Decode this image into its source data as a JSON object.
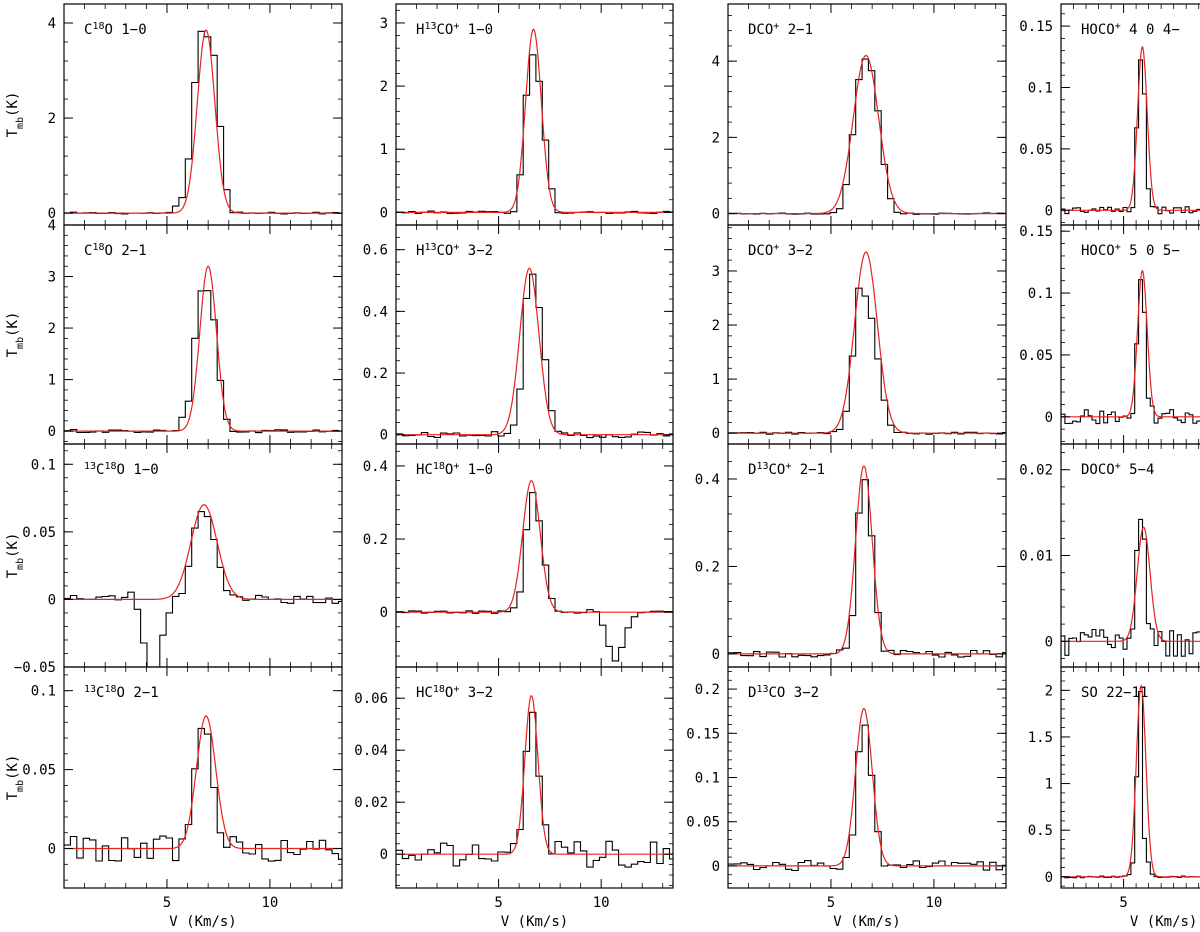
{
  "ytitle_main": "T",
  "ytitle_sub": "mb",
  "ytitle_unit": "(K)",
  "xtitle": "V (Km/s)",
  "colors": {
    "observed": "#000000",
    "fit": "#e8231f",
    "frame": "#000000"
  },
  "chart_data": [
    {
      "type": "line",
      "column": 1,
      "xlim": [
        0.0,
        13.5
      ],
      "xticks": [
        5,
        10
      ],
      "xtick_labels": [
        "5",
        "10"
      ],
      "xlabel": "V (Km/s)",
      "ylabel": "Tmb(K)",
      "panels": [
        {
          "label": {
            "pre": "C",
            "sup1": "18",
            "mid": "O 1−0",
            "sup2": "",
            "post": ""
          },
          "ylim": [
            -0.25,
            4.4
          ],
          "yticks": [
            0,
            2,
            4
          ],
          "ytick_labels": [
            "0",
            "2",
            "4"
          ],
          "noise": 0.02,
          "dip": null,
          "fit": {
            "amp": 3.85,
            "center": 6.9,
            "width": 1.0
          },
          "observed": {
            "x": [
              5.3,
              5.7,
              6.0,
              6.3,
              6.6,
              7.0,
              7.3,
              7.6,
              7.9,
              8.2
            ],
            "y": [
              0.1,
              0.25,
              0.9,
              2.5,
              3.85,
              3.7,
              3.3,
              1.8,
              0.5,
              0.1
            ]
          }
        },
        {
          "label": {
            "pre": "C",
            "sup1": "18",
            "mid": "O 2−1",
            "sup2": "",
            "post": ""
          },
          "ylim": [
            -0.25,
            4.0
          ],
          "yticks": [
            0,
            1,
            2,
            3,
            4
          ],
          "ytick_labels": [
            "0",
            "1",
            "2",
            "3",
            "4"
          ],
          "noise": 0.03,
          "dip": null,
          "fit": {
            "amp": 3.2,
            "center": 7.0,
            "width": 0.95
          },
          "observed": {
            "x": [
              5.6,
              6.0,
              6.3,
              6.6,
              6.9,
              7.2,
              7.5,
              7.8,
              8.1
            ],
            "y": [
              0.2,
              0.4,
              1.6,
              2.7,
              2.8,
              2.5,
              1.3,
              0.3,
              0.1
            ]
          }
        },
        {
          "label": {
            "pre": "",
            "sup1": "13",
            "mid": "C",
            "sup2": "18",
            "post": "O 1−0"
          },
          "ylim": [
            -0.05,
            0.115
          ],
          "yticks": [
            -0.05,
            0,
            0.05,
            0.1
          ],
          "ytick_labels": [
            "−0.05",
            "0",
            "0.05",
            "0.1"
          ],
          "noise": 0.003,
          "dip": {
            "center": 4.3,
            "depth": 0.06,
            "width": 0.5,
            "bump": 0.008
          },
          "fit": {
            "amp": 0.07,
            "center": 6.8,
            "width": 1.5
          },
          "observed": {
            "x": [
              6.0,
              6.3,
              6.6,
              6.9,
              7.2,
              7.5,
              7.8
            ],
            "y": [
              0.02,
              0.05,
              0.065,
              0.065,
              0.05,
              0.03,
              0.01
            ]
          }
        },
        {
          "label": {
            "pre": "",
            "sup1": "13",
            "mid": "C",
            "sup2": "18",
            "post": "O 2−1"
          },
          "ylim": [
            -0.025,
            0.115
          ],
          "yticks": [
            0,
            0.05,
            0.1
          ],
          "ytick_labels": [
            "0",
            "0.05",
            "0.1"
          ],
          "noise": 0.008,
          "dip": null,
          "fit": {
            "amp": 0.084,
            "center": 6.9,
            "width": 1.1
          },
          "observed": {
            "x": [
              6.0,
              6.3,
              6.6,
              6.9,
              7.2,
              7.5
            ],
            "y": [
              0.01,
              0.045,
              0.075,
              0.08,
              0.05,
              0.01
            ]
          }
        }
      ]
    },
    {
      "type": "line",
      "column": 2,
      "xlim": [
        0.0,
        13.5
      ],
      "xticks": [
        5,
        10
      ],
      "xtick_labels": [
        "5",
        "10"
      ],
      "xlabel": "V (Km/s)",
      "panels": [
        {
          "label": {
            "pre": "H",
            "sup1": "13",
            "mid": "CO",
            "sup2": "+",
            "post": " 1−0"
          },
          "ylim": [
            -0.2,
            3.3
          ],
          "yticks": [
            0,
            1,
            2,
            3
          ],
          "ytick_labels": [
            "0",
            "1",
            "2",
            "3"
          ],
          "noise": 0.02,
          "dip": null,
          "fit": {
            "amp": 2.9,
            "center": 6.7,
            "width": 0.9
          },
          "observed": {
            "x": [
              6.0,
              6.3,
              6.6,
              6.9,
              7.2,
              7.5,
              7.8
            ],
            "y": [
              0.4,
              1.7,
              2.55,
              2.3,
              1.4,
              0.5,
              0.1
            ]
          }
        },
        {
          "label": {
            "pre": "H",
            "sup1": "13",
            "mid": "CO",
            "sup2": "+",
            "post": " 3−2"
          },
          "ylim": [
            -0.03,
            0.68
          ],
          "yticks": [
            0,
            0.2,
            0.4,
            0.6
          ],
          "ytick_labels": [
            "0",
            "0.2",
            "0.4",
            "0.6"
          ],
          "noise": 0.01,
          "dip": null,
          "fit": {
            "amp": 0.54,
            "center": 6.5,
            "width": 1.1
          },
          "observed": {
            "x": [
              6.0,
              6.3,
              6.6,
              6.9,
              7.2,
              7.5,
              7.8
            ],
            "y": [
              0.1,
              0.42,
              0.54,
              0.45,
              0.3,
              0.1,
              0.03
            ]
          }
        },
        {
          "label": {
            "pre": "HC",
            "sup1": "18",
            "mid": "O",
            "sup2": "+",
            "post": " 1−0"
          },
          "ylim": [
            -0.15,
            0.46
          ],
          "yticks": [
            0,
            0.2,
            0.4
          ],
          "ytick_labels": [
            "0",
            "0.2",
            "0.4"
          ],
          "noise": 0.004,
          "dip": {
            "center": 10.7,
            "depth": 0.13,
            "width": 0.5,
            "bump": 0.015
          },
          "fit": {
            "amp": 0.36,
            "center": 6.6,
            "width": 1.0
          },
          "observed": {
            "x": [
              6.0,
              6.3,
              6.6,
              6.9,
              7.2,
              7.5,
              7.8
            ],
            "y": [
              0.03,
              0.2,
              0.34,
              0.28,
              0.16,
              0.05,
              0.01
            ]
          }
        },
        {
          "label": {
            "pre": "HC",
            "sup1": "18",
            "mid": "O",
            "sup2": "+",
            "post": " 3−2"
          },
          "ylim": [
            -0.013,
            0.072
          ],
          "yticks": [
            0,
            0.02,
            0.04,
            0.06
          ],
          "ytick_labels": [
            "0",
            "0.02",
            "0.04",
            "0.06"
          ],
          "noise": 0.005,
          "dip": null,
          "fit": {
            "amp": 0.061,
            "center": 6.6,
            "width": 0.75
          },
          "observed": {
            "x": [
              6.0,
              6.3,
              6.6,
              6.9,
              7.2,
              7.5
            ],
            "y": [
              0.005,
              0.035,
              0.06,
              0.035,
              0.015,
              0.002
            ]
          }
        }
      ]
    },
    {
      "type": "line",
      "column": 3,
      "xlim": [
        0.0,
        13.5
      ],
      "xticks": [
        5,
        10
      ],
      "xtick_labels": [
        "5",
        "10"
      ],
      "xlabel": "V (Km/s)",
      "panels": [
        {
          "label": {
            "pre": "DCO",
            "sup1": "+",
            "mid": " 2−1",
            "sup2": "",
            "post": ""
          },
          "ylim": [
            -0.3,
            5.5
          ],
          "yticks": [
            0,
            2,
            4
          ],
          "ytick_labels": [
            "0",
            "2",
            "4"
          ],
          "noise": 0.02,
          "dip": null,
          "fit": {
            "amp": 4.15,
            "center": 6.7,
            "width": 1.45
          },
          "observed": {
            "x": [
              5.6,
              5.9,
              6.2,
              6.5,
              6.8,
              7.1,
              7.4,
              7.7,
              8.0
            ],
            "y": [
              0.4,
              1.2,
              3.0,
              4.0,
              4.1,
              3.5,
              2.2,
              0.8,
              0.2
            ]
          }
        },
        {
          "label": {
            "pre": "DCO",
            "sup1": "+",
            "mid": " 3−2",
            "sup2": "",
            "post": ""
          },
          "ylim": [
            -0.2,
            3.85
          ],
          "yticks": [
            0,
            1,
            2,
            3
          ],
          "ytick_labels": [
            "0",
            "1",
            "2",
            "3"
          ],
          "noise": 0.02,
          "dip": null,
          "fit": {
            "amp": 3.35,
            "center": 6.7,
            "width": 1.3
          },
          "observed": {
            "x": [
              5.7,
              6.0,
              6.3,
              6.6,
              6.9,
              7.2,
              7.5,
              7.8,
              8.1
            ],
            "y": [
              0.3,
              1.2,
              2.7,
              2.6,
              2.3,
              1.6,
              0.8,
              0.2,
              0.05
            ]
          }
        },
        {
          "label": {
            "pre": "D",
            "sup1": "13",
            "mid": "CO",
            "sup2": "+",
            "post": " 2−1"
          },
          "ylim": [
            -0.03,
            0.48
          ],
          "yticks": [
            0,
            0.2,
            0.4
          ],
          "ytick_labels": [
            "0",
            "0.2",
            "0.4"
          ],
          "noise": 0.008,
          "dip": null,
          "fit": {
            "amp": 0.43,
            "center": 6.6,
            "width": 0.95
          },
          "observed": {
            "x": [
              6.0,
              6.3,
              6.6,
              6.9,
              7.2,
              7.5
            ],
            "y": [
              0.05,
              0.3,
              0.42,
              0.32,
              0.12,
              0.03
            ]
          }
        },
        {
          "label": {
            "pre": "D",
            "sup1": "13",
            "mid": "CO 3−2",
            "sup2": "",
            "post": ""
          },
          "ylim": [
            -0.025,
            0.225
          ],
          "yticks": [
            0,
            0.05,
            0.1,
            0.15,
            0.2
          ],
          "ytick_labels": [
            "0",
            "0.05",
            "0.1",
            "0.15",
            "0.2"
          ],
          "noise": 0.006,
          "dip": null,
          "fit": {
            "amp": 0.178,
            "center": 6.6,
            "width": 0.95
          },
          "observed": {
            "x": [
              6.0,
              6.3,
              6.6,
              6.9,
              7.2,
              7.5
            ],
            "y": [
              0.02,
              0.12,
              0.17,
              0.12,
              0.05,
              0.01
            ]
          }
        }
      ]
    },
    {
      "type": "line",
      "column": 4,
      "xlim": [
        0.0,
        13.5
      ],
      "xticks": [
        5
      ],
      "xtick_labels": [
        "5"
      ],
      "xlabel": "V (Km/s)",
      "panels": [
        {
          "label": {
            "pre": "HOCO",
            "sup1": "+",
            "mid": " 4 0 4−",
            "sup2": "",
            "post": ""
          },
          "ylim": [
            -0.012,
            0.168
          ],
          "yticks": [
            0,
            0.05,
            0.1,
            0.15
          ],
          "ytick_labels": [
            "0",
            "0.05",
            "0.1",
            "0.15"
          ],
          "noise": 0.003,
          "dip": null,
          "fit": {
            "amp": 0.133,
            "center": 6.5,
            "width": 0.9
          },
          "observed": {
            "x": [
              5.8,
              6.1,
              6.4,
              6.7
            ],
            "y": [
              0.01,
              0.08,
              0.13,
              0.09
            ]
          }
        },
        {
          "label": {
            "pre": "HOCO",
            "sup1": "+",
            "mid": " 5 0 5−",
            "sup2": "",
            "post": ""
          },
          "ylim": [
            -0.022,
            0.155
          ],
          "yticks": [
            0,
            0.05,
            0.1,
            0.15
          ],
          "ytick_labels": [
            "0",
            "0.05",
            "0.1",
            "0.15"
          ],
          "noise": 0.006,
          "dip": null,
          "fit": {
            "amp": 0.118,
            "center": 6.5,
            "width": 0.9
          },
          "observed": {
            "x": [
              5.8,
              6.1,
              6.4,
              6.7
            ],
            "y": [
              0.01,
              0.07,
              0.118,
              0.08
            ]
          }
        },
        {
          "label": {
            "pre": "DOCO",
            "sup1": "+",
            "mid": " 5−4",
            "sup2": "",
            "post": ""
          },
          "ylim": [
            -0.003,
            0.023
          ],
          "yticks": [
            0,
            0.01,
            0.02
          ],
          "ytick_labels": [
            "0",
            "0.01",
            "0.02"
          ],
          "noise": 0.0018,
          "dip": null,
          "fit": {
            "amp": 0.0133,
            "center": 6.6,
            "width": 1.2
          },
          "observed": {
            "x": [
              5.9,
              6.2,
              6.5,
              6.8
            ],
            "y": [
              0.006,
              0.0155,
              0.013,
              0.011
            ]
          }
        },
        {
          "label": {
            "pre": "SO 22−11",
            "sup1": "",
            "mid": "",
            "sup2": "",
            "post": ""
          },
          "ylim": [
            -0.12,
            2.25
          ],
          "yticks": [
            0,
            0.5,
            1,
            1.5,
            2
          ],
          "ytick_labels": [
            "0",
            "0.5",
            "1",
            "1.5",
            "2"
          ],
          "noise": 0.01,
          "dip": null,
          "fit": {
            "amp": 2.05,
            "center": 6.4,
            "width": 0.9
          },
          "observed": {
            "x": [
              5.7,
              6.0,
              6.3,
              6.6
            ],
            "y": [
              0.05,
              0.9,
              2.05,
              1.7
            ]
          }
        }
      ]
    }
  ]
}
